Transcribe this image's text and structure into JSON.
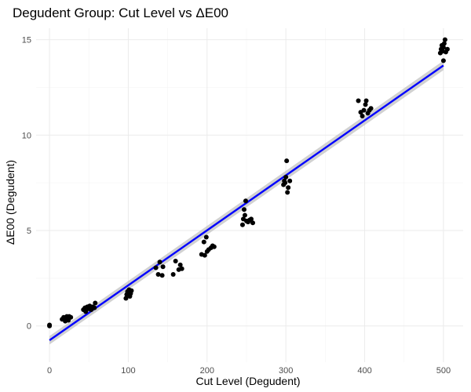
{
  "chart_data": {
    "type": "scatter",
    "title": "Degudent Group: Cut Level vs ΔE00",
    "xlabel": "Cut Level (Degudent)",
    "ylabel": "ΔE00 (Degudent)",
    "xlim": [
      -17,
      525
    ],
    "ylim": [
      -1.9,
      15.6
    ],
    "x_ticks": [
      0,
      100,
      200,
      300,
      400,
      500
    ],
    "y_ticks": [
      0,
      5,
      10,
      15
    ],
    "grid": true,
    "legend": "none",
    "colors": {
      "points": "#000000",
      "fit_line": "#0000ff",
      "confidence_band": "#bdbdbd"
    },
    "points": [
      {
        "x": 0,
        "y": 0.0
      },
      {
        "x": 0,
        "y": 0.05
      },
      {
        "x": 16,
        "y": 0.35
      },
      {
        "x": 18,
        "y": 0.45
      },
      {
        "x": 20,
        "y": 0.25
      },
      {
        "x": 21,
        "y": 0.4
      },
      {
        "x": 22,
        "y": 0.5
      },
      {
        "x": 24,
        "y": 0.3
      },
      {
        "x": 25,
        "y": 0.5
      },
      {
        "x": 27,
        "y": 0.45
      },
      {
        "x": 43,
        "y": 0.85
      },
      {
        "x": 45,
        "y": 0.95
      },
      {
        "x": 46,
        "y": 0.75
      },
      {
        "x": 48,
        "y": 1.0
      },
      {
        "x": 50,
        "y": 0.9
      },
      {
        "x": 51,
        "y": 1.05
      },
      {
        "x": 53,
        "y": 0.85
      },
      {
        "x": 55,
        "y": 1.0
      },
      {
        "x": 57,
        "y": 0.95
      },
      {
        "x": 58,
        "y": 1.2
      },
      {
        "x": 97,
        "y": 1.45
      },
      {
        "x": 98,
        "y": 1.65
      },
      {
        "x": 99,
        "y": 1.8
      },
      {
        "x": 100,
        "y": 1.75
      },
      {
        "x": 101,
        "y": 1.9
      },
      {
        "x": 102,
        "y": 1.55
      },
      {
        "x": 103,
        "y": 1.7
      },
      {
        "x": 104,
        "y": 1.85
      },
      {
        "x": 135,
        "y": 3.05
      },
      {
        "x": 138,
        "y": 2.7
      },
      {
        "x": 140,
        "y": 3.35
      },
      {
        "x": 143,
        "y": 2.65
      },
      {
        "x": 144,
        "y": 3.1
      },
      {
        "x": 157,
        "y": 2.7
      },
      {
        "x": 160,
        "y": 3.4
      },
      {
        "x": 164,
        "y": 2.95
      },
      {
        "x": 166,
        "y": 3.2
      },
      {
        "x": 168,
        "y": 3.0
      },
      {
        "x": 193,
        "y": 3.75
      },
      {
        "x": 196,
        "y": 4.4
      },
      {
        "x": 197,
        "y": 3.7
      },
      {
        "x": 199,
        "y": 4.65
      },
      {
        "x": 200,
        "y": 3.9
      },
      {
        "x": 202,
        "y": 4.0
      },
      {
        "x": 205,
        "y": 4.1
      },
      {
        "x": 207,
        "y": 4.2
      },
      {
        "x": 209,
        "y": 4.15
      },
      {
        "x": 245,
        "y": 5.3
      },
      {
        "x": 246,
        "y": 5.6
      },
      {
        "x": 247,
        "y": 6.1
      },
      {
        "x": 248,
        "y": 5.8
      },
      {
        "x": 249,
        "y": 6.55
      },
      {
        "x": 250,
        "y": 5.5
      },
      {
        "x": 252,
        "y": 5.45
      },
      {
        "x": 254,
        "y": 5.55
      },
      {
        "x": 256,
        "y": 5.6
      },
      {
        "x": 258,
        "y": 5.4
      },
      {
        "x": 297,
        "y": 7.4
      },
      {
        "x": 298,
        "y": 7.6
      },
      {
        "x": 299,
        "y": 7.5
      },
      {
        "x": 300,
        "y": 7.8
      },
      {
        "x": 301,
        "y": 8.65
      },
      {
        "x": 302,
        "y": 7.0
      },
      {
        "x": 303,
        "y": 7.25
      },
      {
        "x": 305,
        "y": 7.6
      },
      {
        "x": 392,
        "y": 11.8
      },
      {
        "x": 395,
        "y": 11.2
      },
      {
        "x": 397,
        "y": 11.0
      },
      {
        "x": 399,
        "y": 11.3
      },
      {
        "x": 401,
        "y": 11.6
      },
      {
        "x": 402,
        "y": 11.8
      },
      {
        "x": 404,
        "y": 11.15
      },
      {
        "x": 406,
        "y": 11.3
      },
      {
        "x": 408,
        "y": 11.4
      },
      {
        "x": 496,
        "y": 14.3
      },
      {
        "x": 497,
        "y": 14.5
      },
      {
        "x": 498,
        "y": 14.7
      },
      {
        "x": 499,
        "y": 14.4
      },
      {
        "x": 500,
        "y": 13.9
      },
      {
        "x": 500,
        "y": 14.6
      },
      {
        "x": 501,
        "y": 14.8
      },
      {
        "x": 502,
        "y": 15.0
      },
      {
        "x": 503,
        "y": 14.35
      },
      {
        "x": 505,
        "y": 14.5
      }
    ],
    "fit": {
      "x": [
        0,
        500
      ],
      "y": [
        -0.75,
        13.65
      ],
      "se_y": [
        0.22,
        0.25
      ]
    }
  }
}
